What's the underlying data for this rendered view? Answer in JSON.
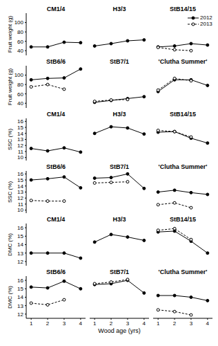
{
  "chart_data": [
    {
      "type": "line",
      "title": "CM1/4",
      "y_label": "Fruit weight (g)",
      "x": [
        1,
        2,
        3,
        4
      ],
      "series": [
        {
          "name": "2012",
          "color": "#000000",
          "marker": "filled",
          "line_style": "solid",
          "values": [
            48,
            48,
            58,
            57
          ]
        }
      ],
      "xlim": [
        0.7,
        4.3
      ],
      "xticks": [
        1,
        2,
        3,
        4
      ],
      "ylim": [
        30,
        120
      ],
      "yticks": [
        40,
        60,
        80,
        100
      ],
      "tick_labels": "y"
    },
    {
      "type": "line",
      "title": "H3/3",
      "x": [
        1,
        2,
        3,
        4
      ],
      "series": [
        {
          "name": "2012",
          "color": "#000000",
          "marker": "filled",
          "line_style": "solid",
          "values": [
            50,
            55,
            61,
            63
          ]
        }
      ],
      "xlim": [
        0.7,
        4.3
      ],
      "xticks": [
        1,
        2,
        3,
        4
      ],
      "ylim": [
        30,
        120
      ],
      "yticks": [
        40,
        60,
        80,
        100
      ],
      "tick_labels": false
    },
    {
      "type": "line",
      "title": "StB14/15",
      "x": [
        1,
        2,
        3,
        4
      ],
      "series": [
        {
          "name": "2012",
          "color": "#000000",
          "marker": "filled",
          "line_style": "solid",
          "values": [
            48,
            50,
            55,
            52
          ]
        },
        {
          "name": "2013",
          "color": "#000000",
          "marker": "open",
          "line_style": "dashed",
          "values": [
            47,
            42,
            40,
            null
          ]
        }
      ],
      "xlim": [
        0.7,
        4.3
      ],
      "xticks": [
        1,
        2,
        3,
        4
      ],
      "ylim": [
        30,
        120
      ],
      "yticks": [
        40,
        60,
        80,
        100
      ],
      "tick_labels": false,
      "legend": "top right"
    },
    {
      "type": "line",
      "title": "StB6/6",
      "y_label": "Fruit weight (g)",
      "x": [
        1,
        2,
        3,
        4
      ],
      "series": [
        {
          "name": "2012",
          "color": "#000000",
          "marker": "filled",
          "line_style": "solid",
          "values": [
            90,
            93,
            94,
            113
          ]
        },
        {
          "name": "2013",
          "color": "#000000",
          "marker": "open",
          "line_style": "dashed",
          "values": [
            75,
            80,
            70,
            null
          ]
        }
      ],
      "xlim": [
        0.7,
        4.3
      ],
      "xticks": [
        1,
        2,
        3,
        4
      ],
      "ylim": [
        30,
        120
      ],
      "yticks": [
        40,
        60,
        80,
        100
      ],
      "tick_labels": "y"
    },
    {
      "type": "line",
      "title": "StB7/1",
      "x": [
        1,
        2,
        3,
        4
      ],
      "series": [
        {
          "name": "2012",
          "color": "#000000",
          "marker": "filled",
          "line_style": "solid",
          "values": [
            42,
            46,
            50,
            54
          ]
        },
        {
          "name": "2013",
          "color": "#000000",
          "marker": "open",
          "line_style": "dashed",
          "values": [
            44,
            47,
            48,
            null
          ]
        }
      ],
      "xlim": [
        0.7,
        4.3
      ],
      "xticks": [
        1,
        2,
        3,
        4
      ],
      "ylim": [
        30,
        120
      ],
      "yticks": [
        40,
        60,
        80,
        100
      ],
      "tick_labels": false
    },
    {
      "type": "line",
      "title": "'Clutha Summer'",
      "x": [
        1,
        2,
        3,
        4
      ],
      "series": [
        {
          "name": "2012",
          "color": "#000000",
          "marker": "filled",
          "line_style": "solid",
          "values": [
            65,
            90,
            90,
            78
          ]
        },
        {
          "name": "2013",
          "color": "#000000",
          "marker": "open",
          "line_style": "dashed",
          "values": [
            68,
            93,
            88,
            null
          ]
        }
      ],
      "xlim": [
        0.7,
        4.3
      ],
      "xticks": [
        1,
        2,
        3,
        4
      ],
      "ylim": [
        30,
        120
      ],
      "yticks": [
        40,
        60,
        80,
        100
      ],
      "tick_labels": false
    },
    {
      "type": "line",
      "title": "CM1/4",
      "y_label": "SSC (%)",
      "x": [
        1,
        2,
        3,
        4
      ],
      "series": [
        {
          "name": "2012",
          "color": "#000000",
          "marker": "filled",
          "line_style": "solid",
          "values": [
            11.5,
            11.1,
            11.6,
            10.9
          ]
        }
      ],
      "xlim": [
        0.7,
        4.3
      ],
      "xticks": [
        1,
        2,
        3,
        4
      ],
      "ylim": [
        9.5,
        16.5
      ],
      "yticks": [
        10,
        11,
        12,
        13,
        14,
        15,
        16
      ],
      "tick_labels": "y"
    },
    {
      "type": "line",
      "title": "H3/3",
      "x": [
        1,
        2,
        3,
        4
      ],
      "series": [
        {
          "name": "2012",
          "color": "#000000",
          "marker": "filled",
          "line_style": "solid",
          "values": [
            14.0,
            15.1,
            14.9,
            13.9
          ]
        }
      ],
      "xlim": [
        0.7,
        4.3
      ],
      "xticks": [
        1,
        2,
        3,
        4
      ],
      "ylim": [
        9.5,
        16.5
      ],
      "yticks": [
        10,
        11,
        12,
        13,
        14,
        15,
        16
      ],
      "tick_labels": false
    },
    {
      "type": "line",
      "title": "StB14/15",
      "x": [
        1,
        2,
        3,
        4
      ],
      "series": [
        {
          "name": "2012",
          "color": "#000000",
          "marker": "filled",
          "line_style": "solid",
          "values": [
            14.2,
            14.3,
            13.2,
            12.4
          ]
        },
        {
          "name": "2013",
          "color": "#000000",
          "marker": "open",
          "line_style": "dashed",
          "values": [
            14.5,
            14.3,
            13.4,
            null
          ]
        }
      ],
      "xlim": [
        0.7,
        4.3
      ],
      "xticks": [
        1,
        2,
        3,
        4
      ],
      "ylim": [
        9.5,
        16.5
      ],
      "yticks": [
        10,
        11,
        12,
        13,
        14,
        15,
        16
      ],
      "tick_labels": false
    },
    {
      "type": "line",
      "title": "StB6/6",
      "y_label": "SSC (%)",
      "x": [
        1,
        2,
        3,
        4
      ],
      "series": [
        {
          "name": "2012",
          "color": "#000000",
          "marker": "filled",
          "line_style": "solid",
          "values": [
            15.0,
            15.2,
            15.5,
            13.7
          ]
        },
        {
          "name": "2013",
          "color": "#000000",
          "marker": "open",
          "line_style": "dashed",
          "values": [
            11.6,
            11.5,
            11.5,
            null
          ]
        }
      ],
      "xlim": [
        0.7,
        4.3
      ],
      "xticks": [
        1,
        2,
        3,
        4
      ],
      "ylim": [
        9.5,
        16.5
      ],
      "yticks": [
        10,
        11,
        12,
        13,
        14,
        15,
        16
      ],
      "tick_labels": "y"
    },
    {
      "type": "line",
      "title": "StB7/1",
      "x": [
        1,
        2,
        3,
        4
      ],
      "series": [
        {
          "name": "2012",
          "color": "#000000",
          "marker": "filled",
          "line_style": "solid",
          "values": [
            15.3,
            15.4,
            16.0,
            13.6
          ]
        },
        {
          "name": "2013",
          "color": "#000000",
          "marker": "open",
          "line_style": "dashed",
          "values": [
            14.5,
            14.6,
            14.7,
            null
          ]
        }
      ],
      "xlim": [
        0.7,
        4.3
      ],
      "xticks": [
        1,
        2,
        3,
        4
      ],
      "ylim": [
        9.5,
        16.5
      ],
      "yticks": [
        10,
        11,
        12,
        13,
        14,
        15,
        16
      ],
      "tick_labels": false
    },
    {
      "type": "line",
      "title": "'Clutha Summer'",
      "x": [
        1,
        2,
        3,
        4
      ],
      "series": [
        {
          "name": "2012",
          "color": "#000000",
          "marker": "filled",
          "line_style": "solid",
          "values": [
            13.0,
            13.3,
            12.9,
            12.6
          ]
        },
        {
          "name": "2013",
          "color": "#000000",
          "marker": "open",
          "line_style": "dashed",
          "values": [
            10.9,
            11.2,
            10.4,
            null
          ]
        }
      ],
      "xlim": [
        0.7,
        4.3
      ],
      "xticks": [
        1,
        2,
        3,
        4
      ],
      "ylim": [
        9.5,
        16.5
      ],
      "yticks": [
        10,
        11,
        12,
        13,
        14,
        15,
        16
      ],
      "tick_labels": false
    },
    {
      "type": "line",
      "title": "CM1/4",
      "y_label": "DMC (%)",
      "x": [
        1,
        2,
        3,
        4
      ],
      "series": [
        {
          "name": "2012",
          "color": "#000000",
          "marker": "filled",
          "line_style": "solid",
          "values": [
            13.0,
            13.0,
            13.0,
            12.4
          ]
        }
      ],
      "xlim": [
        0.7,
        4.3
      ],
      "xticks": [
        1,
        2,
        3,
        4
      ],
      "ylim": [
        11.5,
        16.5
      ],
      "yticks": [
        12,
        13,
        14,
        15,
        16
      ],
      "tick_labels": "y"
    },
    {
      "type": "line",
      "title": "H3/3",
      "x": [
        1,
        2,
        3,
        4
      ],
      "series": [
        {
          "name": "2012",
          "color": "#000000",
          "marker": "filled",
          "line_style": "solid",
          "values": [
            14.3,
            15.2,
            14.9,
            14.5
          ]
        }
      ],
      "xlim": [
        0.7,
        4.3
      ],
      "xticks": [
        1,
        2,
        3,
        4
      ],
      "ylim": [
        11.5,
        16.5
      ],
      "yticks": [
        12,
        13,
        14,
        15,
        16
      ],
      "tick_labels": false
    },
    {
      "type": "line",
      "title": "StB14/15",
      "x": [
        1,
        2,
        3,
        4
      ],
      "series": [
        {
          "name": "2012",
          "color": "#000000",
          "marker": "filled",
          "line_style": "solid",
          "values": [
            15.5,
            15.6,
            14.4,
            13.0
          ]
        },
        {
          "name": "2013",
          "color": "#000000",
          "marker": "open",
          "line_style": "dashed",
          "values": [
            15.7,
            15.9,
            14.6,
            null
          ]
        }
      ],
      "xlim": [
        0.7,
        4.3
      ],
      "xticks": [
        1,
        2,
        3,
        4
      ],
      "ylim": [
        11.5,
        16.5
      ],
      "yticks": [
        12,
        13,
        14,
        15,
        16
      ],
      "tick_labels": false
    },
    {
      "type": "line",
      "title": "StB6/6",
      "y_label": "DMC (%)",
      "x": [
        1,
        2,
        3,
        4
      ],
      "series": [
        {
          "name": "2012",
          "color": "#000000",
          "marker": "filled",
          "line_style": "solid",
          "values": [
            15.2,
            15.1,
            15.9,
            15.0
          ]
        },
        {
          "name": "2013",
          "color": "#000000",
          "marker": "open",
          "line_style": "dashed",
          "values": [
            13.3,
            13.1,
            13.7,
            null
          ]
        }
      ],
      "xlim": [
        0.7,
        4.3
      ],
      "xticks": [
        1,
        2,
        3,
        4
      ],
      "ylim": [
        11.5,
        16.5
      ],
      "yticks": [
        12,
        13,
        14,
        15,
        16
      ],
      "tick_labels": true
    },
    {
      "type": "line",
      "title": "StB7/1",
      "x_label": "Wood age (yrs)",
      "x": [
        1,
        2,
        3,
        4
      ],
      "series": [
        {
          "name": "2012",
          "color": "#000000",
          "marker": "filled",
          "line_style": "solid",
          "values": [
            15.5,
            15.6,
            16.0,
            14.5
          ]
        },
        {
          "name": "2013",
          "color": "#000000",
          "marker": "open",
          "line_style": "dashed",
          "values": [
            15.6,
            15.8,
            16.1,
            null
          ]
        }
      ],
      "xlim": [
        0.7,
        4.3
      ],
      "xticks": [
        1,
        2,
        3,
        4
      ],
      "ylim": [
        11.5,
        16.5
      ],
      "yticks": [
        12,
        13,
        14,
        15,
        16
      ],
      "tick_labels": "x"
    },
    {
      "type": "line",
      "title": "'Clutha Summer'",
      "x": [
        1,
        2,
        3,
        4
      ],
      "series": [
        {
          "name": "2012",
          "color": "#000000",
          "marker": "filled",
          "line_style": "solid",
          "values": [
            14.2,
            14.2,
            14.0,
            13.6
          ]
        },
        {
          "name": "2013",
          "color": "#000000",
          "marker": "open",
          "line_style": "dashed",
          "values": [
            12.5,
            12.3,
            11.9,
            null
          ]
        }
      ],
      "xlim": [
        0.7,
        4.3
      ],
      "xticks": [
        1,
        2,
        3,
        4
      ],
      "ylim": [
        11.5,
        16.5
      ],
      "yticks": [
        12,
        13,
        14,
        15,
        16
      ],
      "tick_labels": "x"
    }
  ]
}
